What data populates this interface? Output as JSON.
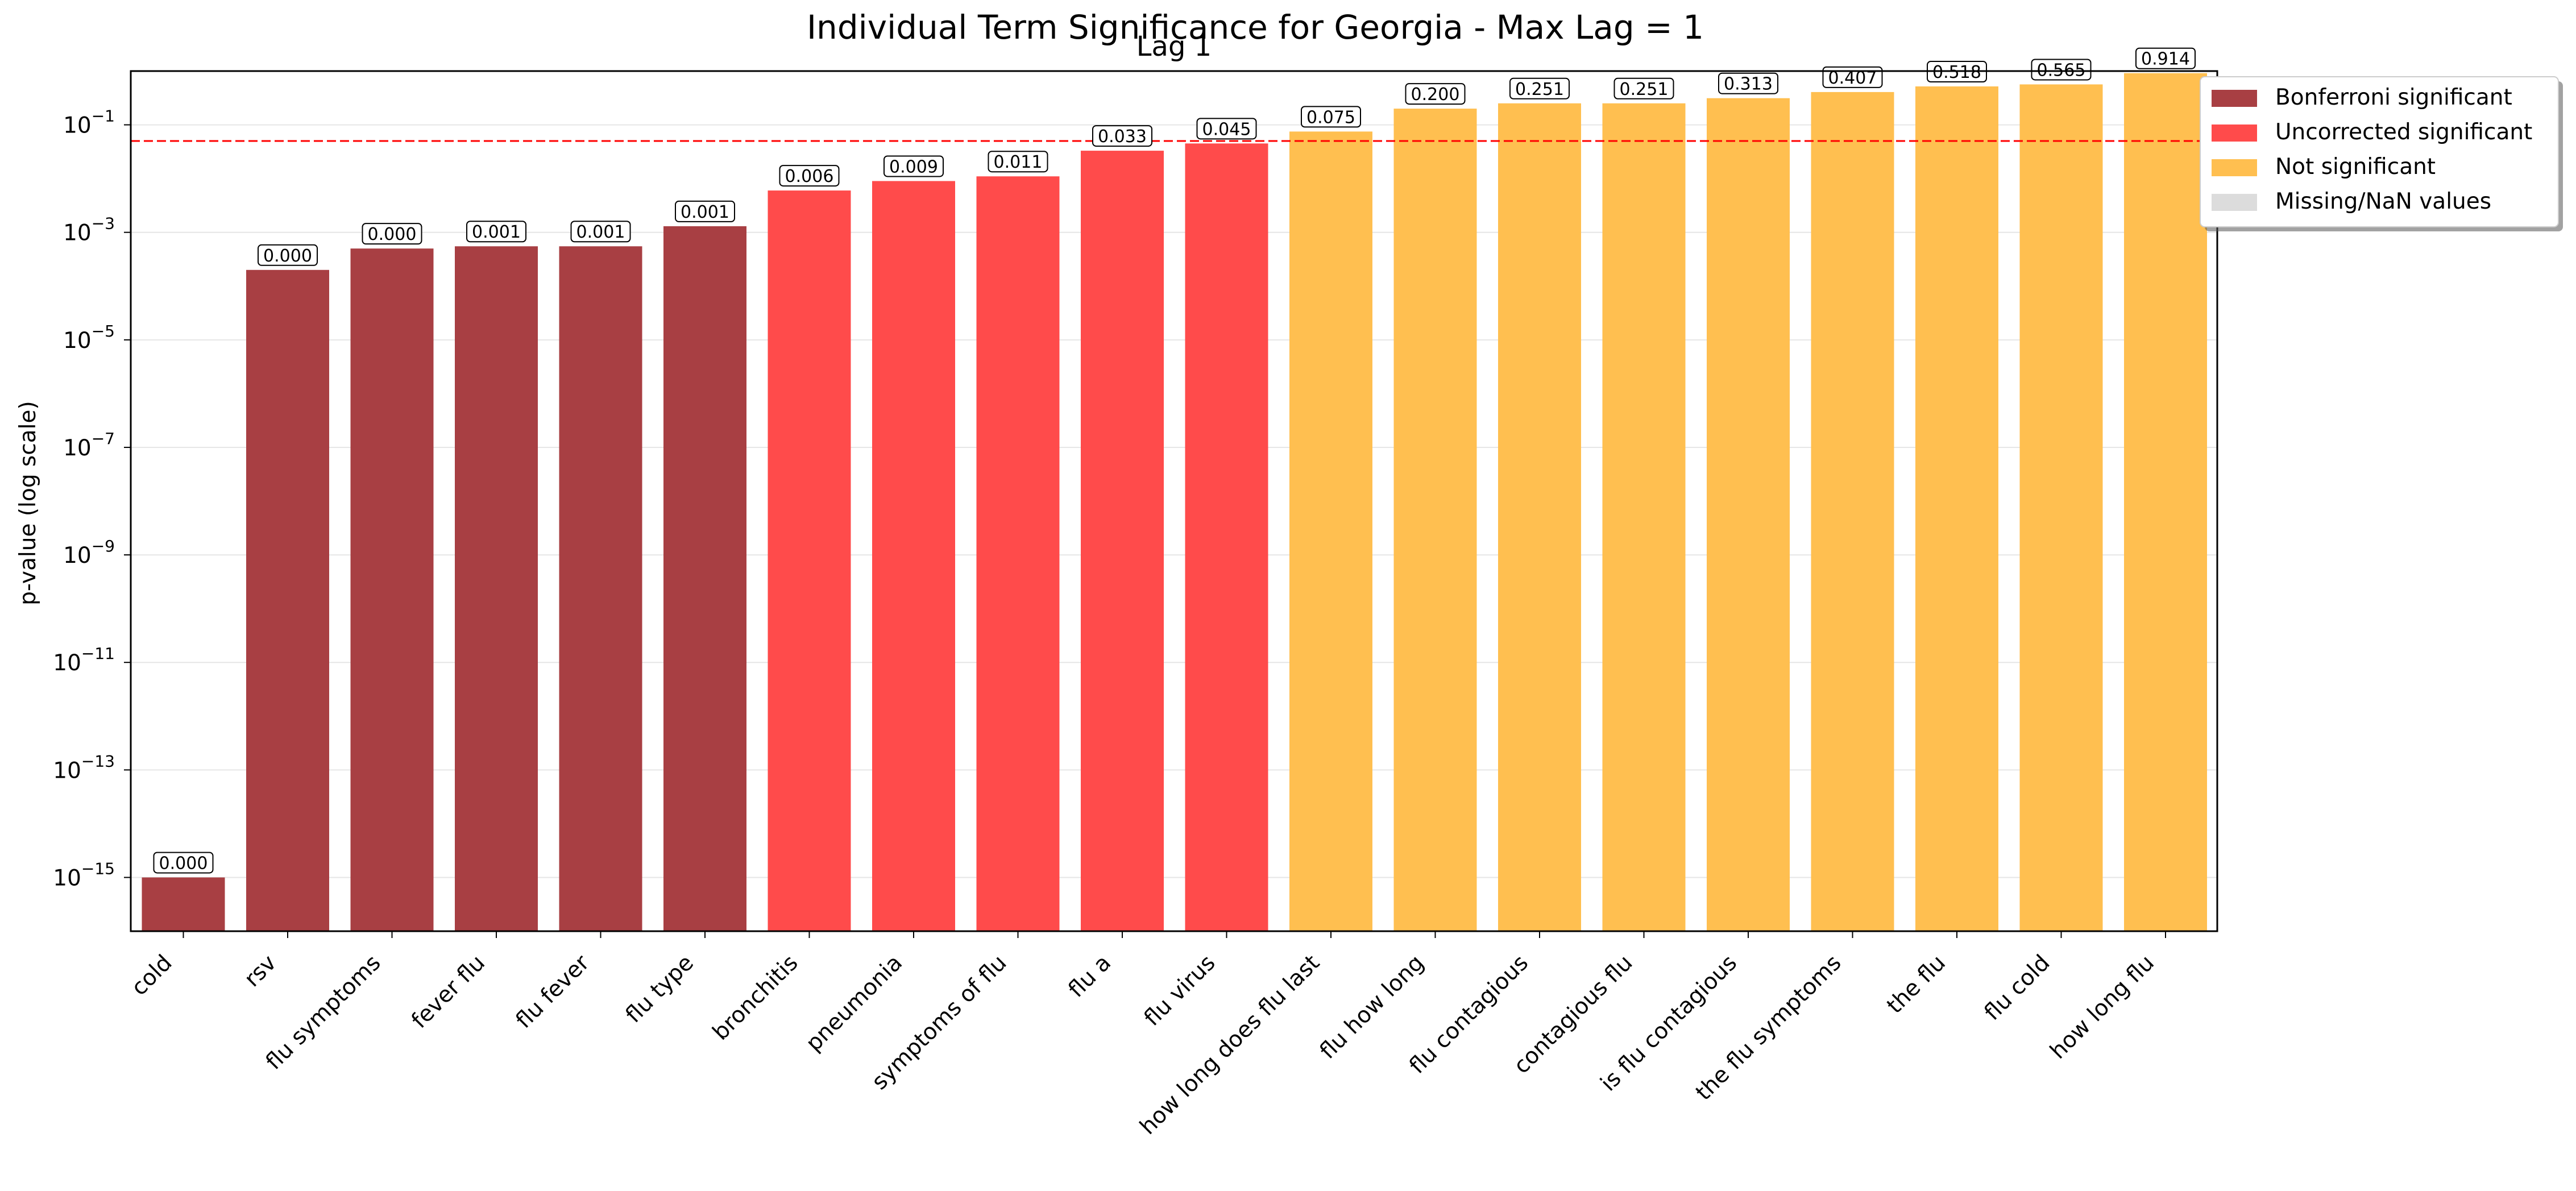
{
  "chart_data": {
    "type": "bar",
    "title": "Individual Term Significance for Georgia - Max Lag = 1",
    "subtitle": "Lag 1",
    "xlabel": "",
    "ylabel": "p-value (log scale)",
    "y_scale": "log",
    "ylim": [
      1e-16,
      1
    ],
    "y_ticks": [
      {
        "exp": -1,
        "base": "10",
        "sup": "−1"
      },
      {
        "exp": -3,
        "base": "10",
        "sup": "−3"
      },
      {
        "exp": -5,
        "base": "10",
        "sup": "−5"
      },
      {
        "exp": -7,
        "base": "10",
        "sup": "−7"
      },
      {
        "exp": -9,
        "base": "10",
        "sup": "−9"
      },
      {
        "exp": -11,
        "base": "10",
        "sup": "−11"
      },
      {
        "exp": -13,
        "base": "10",
        "sup": "−13"
      },
      {
        "exp": -15,
        "base": "10",
        "sup": "−15"
      }
    ],
    "grid": true,
    "threshold": {
      "value": 0.05,
      "color": "#ff0000",
      "style": "dashed"
    },
    "legend": {
      "position": "outside top-right",
      "entries": [
        {
          "label": "Bonferroni significant",
          "color": "#a83f43"
        },
        {
          "label": "Uncorrected significant",
          "color": "#ff4b4b"
        },
        {
          "label": "Not significant",
          "color": "#ffbf50"
        },
        {
          "label": "Missing/NaN values",
          "color": "#dcdcdc"
        }
      ]
    },
    "categories": [
      "cold",
      "rsv",
      "flu symptoms",
      "fever flu",
      "flu fever",
      "flu type",
      "bronchitis",
      "pneumonia",
      "symptoms of flu",
      "flu a",
      "flu virus",
      "how long does flu last",
      "flu how long",
      "flu contagious",
      "contagious flu",
      "is flu contagious",
      "the flu symptoms",
      "the flu",
      "flu cold",
      "how long flu"
    ],
    "values": [
      1e-15,
      0.0002,
      0.0005,
      0.00055,
      0.00055,
      0.0013,
      0.006,
      0.009,
      0.011,
      0.033,
      0.045,
      0.075,
      0.2,
      0.251,
      0.251,
      0.313,
      0.407,
      0.518,
      0.565,
      0.914
    ],
    "value_labels": [
      "0.000",
      "0.000",
      "0.000",
      "0.001",
      "0.001",
      "0.001",
      "0.006",
      "0.009",
      "0.011",
      "0.033",
      "0.045",
      "0.075",
      "0.200",
      "0.251",
      "0.251",
      "0.313",
      "0.407",
      "0.518",
      "0.565",
      "0.914"
    ],
    "significance": [
      "Bonferroni significant",
      "Bonferroni significant",
      "Bonferroni significant",
      "Bonferroni significant",
      "Bonferroni significant",
      "Bonferroni significant",
      "Uncorrected significant",
      "Uncorrected significant",
      "Uncorrected significant",
      "Uncorrected significant",
      "Uncorrected significant",
      "Not significant",
      "Not significant",
      "Not significant",
      "Not significant",
      "Not significant",
      "Not significant",
      "Not significant",
      "Not significant",
      "Not significant"
    ]
  }
}
